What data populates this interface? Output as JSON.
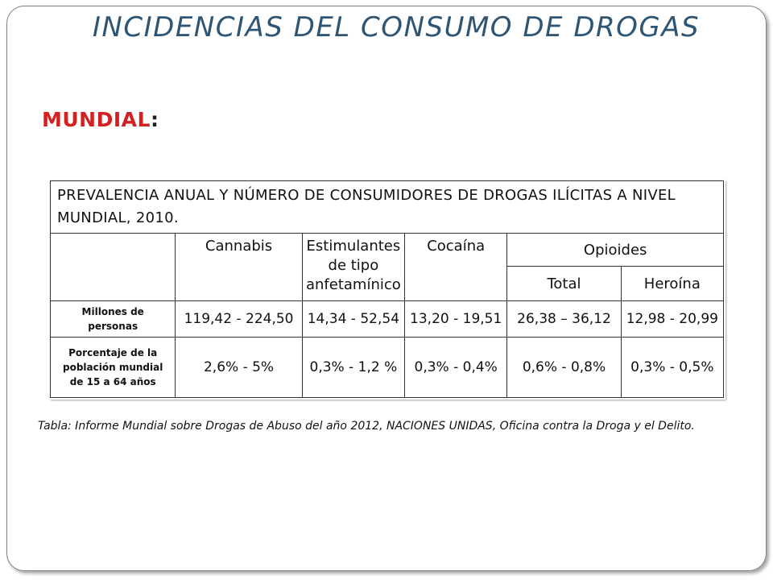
{
  "slide": {
    "title": "INCIDENCIAS DEL CONSUMO DE DROGAS",
    "subtitle": "MUNDIAL",
    "subtitle_colon": ":",
    "caption": "Tabla: Informe Mundial sobre Drogas de Abuso del año 2012, NACIONES UNIDAS, Oficina contra la Droga y el Delito.",
    "colors": {
      "title": "#2e5573",
      "subtitle": "#d42020"
    }
  },
  "table": {
    "title": "PREVALENCIA ANUAL Y NÚMERO DE CONSUMIDORES DE DROGAS ILÍCITAS A NIVEL MUNDIAL, 2010.",
    "headers": {
      "cannabis": "Cannabis",
      "stimulants": [
        "Estimulantes",
        "de tipo",
        "anfetamínico"
      ],
      "cocaine": "Cocaína",
      "opioids": "Opioides",
      "opioids_total": "Total",
      "heroin": "Heroína"
    },
    "rows": [
      {
        "label": [
          "Millones de",
          "personas"
        ],
        "values": [
          "119,42 - 224,50",
          "14,34 - 52,54",
          "13,20 - 19,51",
          "26,38 – 36,12",
          "12,98 - 20,99"
        ]
      },
      {
        "label": [
          "Porcentaje de la",
          "población mundial",
          "de 15 a 64 años"
        ],
        "values": [
          "2,6% - 5%",
          "0,3% - 1,2 %",
          "0,3% - 0,4%",
          "0,6% - 0,8%",
          "0,3% - 0,5%"
        ]
      }
    ]
  }
}
